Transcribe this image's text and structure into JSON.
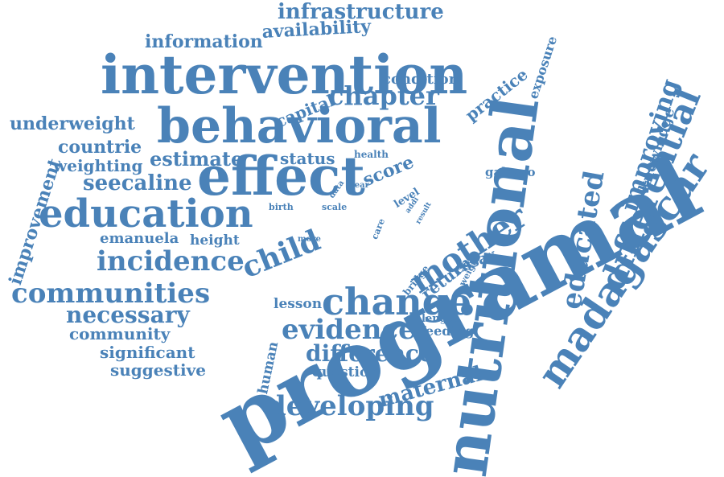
{
  "word_color": "#4a82b8",
  "words": [
    "nutritional",
    "programal",
    "intervention",
    "behavioral",
    "effect",
    "madagascar",
    "education",
    "change",
    "differential",
    "mother",
    "communities",
    "incidence",
    "developing",
    "evidence",
    "child",
    "chapter",
    "educated",
    "difference",
    "necessary",
    "improving",
    "infrastructure",
    "maternal",
    "underweight",
    "improvement",
    "availability",
    "information",
    "seecaline",
    "estimate",
    "countrie",
    "weighting",
    "knowledge",
    "practice",
    "capital",
    "condition",
    "status",
    "score",
    "community",
    "significant",
    "suggestive",
    "emanuela",
    "height",
    "lesson",
    "exposure",
    "return",
    "human",
    "question",
    "essay",
    "feeding",
    "galasso",
    "length",
    "health",
    "birth",
    "scale",
    "year",
    "data",
    "level",
    "addi",
    "result",
    "more",
    "care",
    "bridge",
    "weight"
  ]
}
